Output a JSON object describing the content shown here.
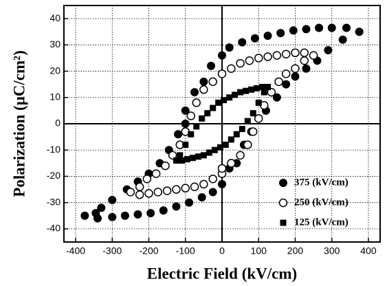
{
  "chart_data": {
    "type": "scatter",
    "x_label": "Electric Field (kV/cm)",
    "y_label": "Polarization (μC/cm²)",
    "xlim": [
      -432,
      432
    ],
    "ylim": [
      -45,
      45
    ],
    "xticks": [
      -400,
      -300,
      -200,
      -100,
      0,
      100,
      200,
      300,
      400
    ],
    "yticks": [
      -40,
      -30,
      -20,
      -10,
      0,
      10,
      20,
      30,
      40
    ],
    "grid": true,
    "legend": "lower right",
    "series": [
      {
        "name": "375 (kV/cm)",
        "color": "#000000",
        "marker": "filled-circle",
        "x": [
          375,
          340,
          300,
          265,
          230,
          195,
          160,
          125,
          90,
          55,
          20,
          0,
          -30,
          -50,
          -75,
          -100,
          -100,
          -120,
          -145,
          -170,
          -200,
          -230,
          -260,
          -300,
          -330,
          -345,
          -375,
          -340,
          -300,
          -265,
          -230,
          -195,
          -160,
          -125,
          -90,
          -55,
          -25,
          0,
          20,
          40,
          60,
          80,
          100,
          120,
          150,
          175,
          200,
          230,
          260,
          290,
          330
        ],
        "values": [
          35,
          36.5,
          36.5,
          36.5,
          36,
          35.5,
          34.5,
          33.5,
          32.5,
          31,
          29,
          26,
          22,
          16,
          12,
          5,
          0,
          -4,
          -10,
          -15,
          -19,
          -22,
          -25,
          -29,
          -32,
          -34,
          -35,
          -36,
          -35.5,
          -35,
          -34.5,
          -34,
          -33,
          -31.5,
          -30,
          -28,
          -26,
          -23,
          -17,
          -15,
          -8,
          -3,
          2,
          5,
          10,
          15,
          18,
          21,
          24,
          28,
          32
        ]
      },
      {
        "name": "250 (kV/cm)",
        "color": "#000000",
        "marker": "open-circle",
        "x": [
          250,
          225,
          200,
          175,
          150,
          125,
          100,
          75,
          50,
          25,
          0,
          -25,
          -50,
          -70,
          -85,
          -100,
          -115,
          -135,
          -155,
          -180,
          -205,
          -225,
          -250,
          -225,
          -200,
          -175,
          -150,
          -125,
          -100,
          -75,
          -50,
          -25,
          0,
          0,
          25,
          50,
          70,
          85,
          100,
          115,
          135,
          155,
          175,
          200,
          225
        ],
        "values": [
          26,
          27,
          27,
          26.5,
          26,
          25.5,
          25,
          24,
          23,
          21,
          19,
          16,
          13,
          8,
          3,
          -3,
          -8,
          -12,
          -16,
          -19,
          -21,
          -24,
          -26,
          -27,
          -26.5,
          -26,
          -25.5,
          -25,
          -24.5,
          -24,
          -23,
          -21,
          -19,
          -17,
          -15,
          -12,
          -8,
          -3,
          2,
          7,
          12,
          16,
          19,
          21,
          24
        ]
      },
      {
        "name": "125 (kV/cm)",
        "color": "#000000",
        "marker": "filled-square",
        "x": [
          125,
          110,
          95,
          80,
          65,
          50,
          35,
          20,
          5,
          -10,
          -25,
          -40,
          -55,
          -70,
          -85,
          -100,
          -115,
          -125,
          -110,
          -95,
          -80,
          -65,
          -50,
          -35,
          -20,
          -5,
          10,
          25,
          40,
          55,
          70,
          85,
          100,
          115
        ],
        "values": [
          14,
          14,
          13.5,
          13,
          12.5,
          12,
          11,
          10,
          9,
          8,
          6,
          4,
          2,
          -1,
          -4,
          -8,
          -12,
          -14,
          -14,
          -13.5,
          -13,
          -12.5,
          -12,
          -11,
          -10,
          -9,
          -8,
          -6,
          -4,
          -2,
          1,
          4,
          8,
          12
        ]
      }
    ]
  }
}
